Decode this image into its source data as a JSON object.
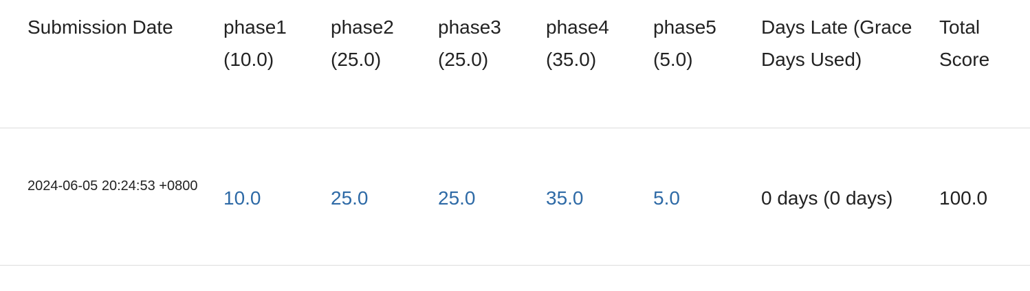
{
  "table": {
    "headers": [
      "Submission Date",
      "phase1 (10.0)",
      "phase2 (25.0)",
      "phase3 (25.0)",
      "phase4 (35.0)",
      "phase5 (5.0)",
      "Days Late (Grace Days Used)",
      "Total Score"
    ],
    "rows": [
      {
        "submission_date": "2024-06-05 20:24:53 +0800",
        "phase1": "10.0",
        "phase2": "25.0",
        "phase3": "25.0",
        "phase4": "35.0",
        "phase5": "5.0",
        "days_late": "0 days (0 days)",
        "total_score": "100.0"
      }
    ]
  },
  "colors": {
    "link": "#2e6aa6",
    "text": "#222222",
    "divider": "#dcdcdc"
  }
}
